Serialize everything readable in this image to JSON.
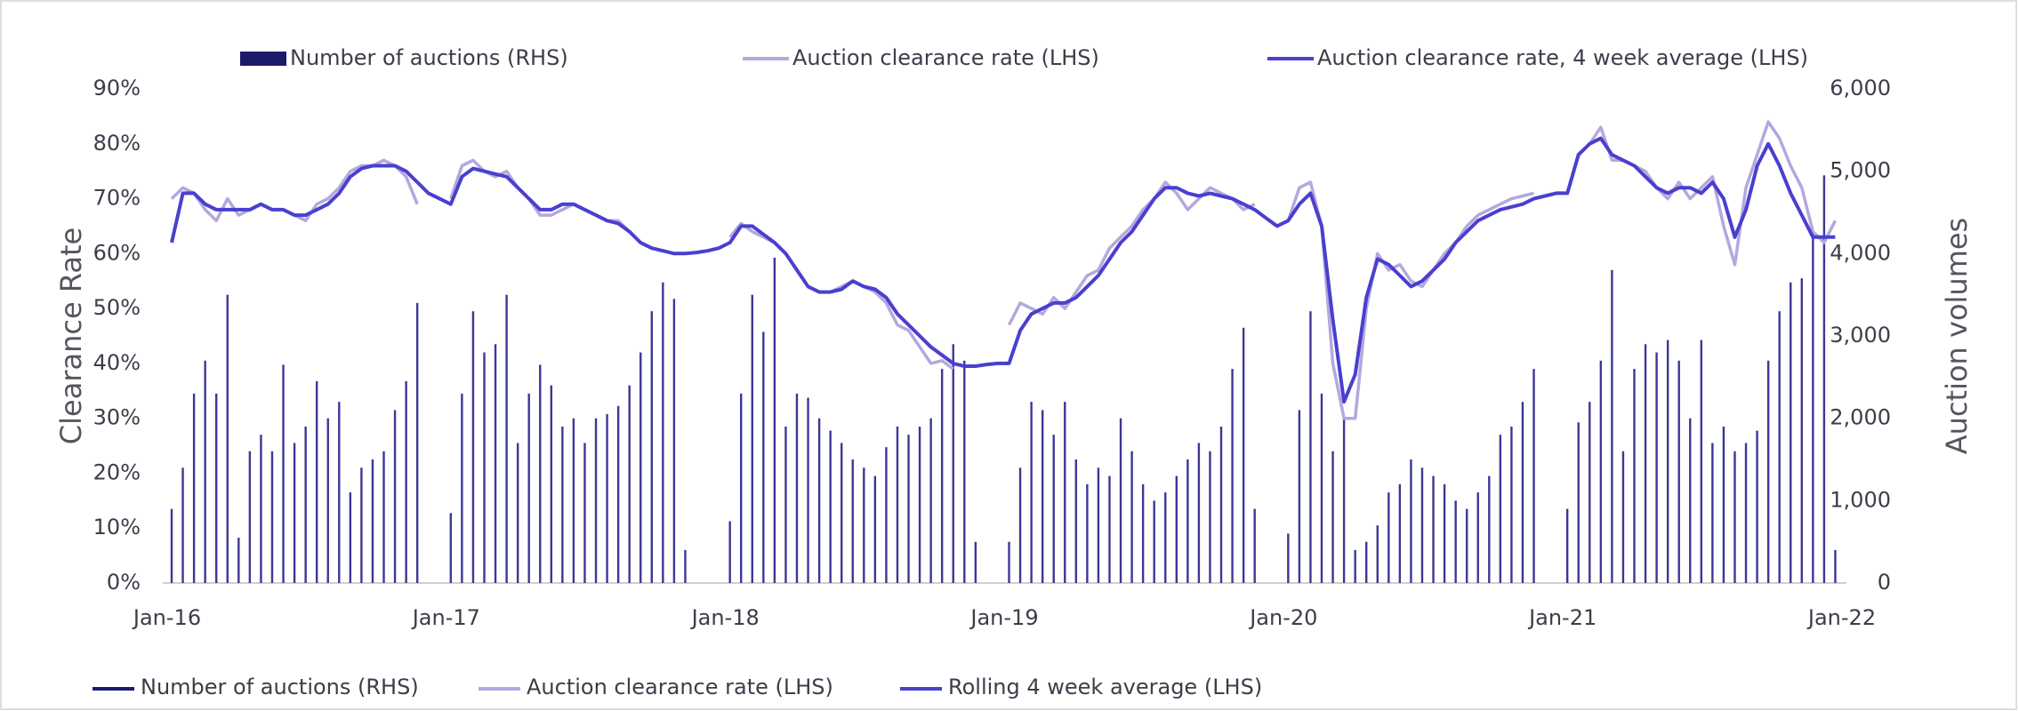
{
  "chart_data": {
    "type": "bar-line",
    "y_label": "Clearance Rate",
    "y2_label": "Auction volumes",
    "x": [
      2016,
      2016.04,
      2016.08,
      2016.12,
      2016.16,
      2016.2,
      2016.24,
      2016.28,
      2016.32,
      2016.36,
      2016.4,
      2016.44,
      2016.48,
      2016.52,
      2016.56,
      2016.6,
      2016.64,
      2016.68,
      2016.72,
      2016.76,
      2016.8,
      2016.84,
      2016.88,
      2016.92,
      2016.96,
      2017,
      2017.04,
      2017.08,
      2017.12,
      2017.16,
      2017.2,
      2017.24,
      2017.28,
      2017.32,
      2017.36,
      2017.4,
      2017.44,
      2017.48,
      2017.52,
      2017.56,
      2017.6,
      2017.64,
      2017.68,
      2017.72,
      2017.76,
      2017.8,
      2017.84,
      2017.88,
      2017.92,
      2017.96,
      2018,
      2018.04,
      2018.08,
      2018.12,
      2018.16,
      2018.2,
      2018.24,
      2018.28,
      2018.32,
      2018.36,
      2018.4,
      2018.44,
      2018.48,
      2018.52,
      2018.56,
      2018.6,
      2018.64,
      2018.68,
      2018.72,
      2018.76,
      2018.8,
      2018.84,
      2018.88,
      2018.92,
      2018.96,
      2019,
      2019.04,
      2019.08,
      2019.12,
      2019.16,
      2019.2,
      2019.24,
      2019.28,
      2019.32,
      2019.36,
      2019.4,
      2019.44,
      2019.48,
      2019.52,
      2019.56,
      2019.6,
      2019.64,
      2019.68,
      2019.72,
      2019.76,
      2019.8,
      2019.84,
      2019.88,
      2019.92,
      2019.96,
      2020,
      2020.04,
      2020.08,
      2020.12,
      2020.16,
      2020.2,
      2020.24,
      2020.28,
      2020.32,
      2020.36,
      2020.4,
      2020.44,
      2020.48,
      2020.52,
      2020.56,
      2020.6,
      2020.64,
      2020.68,
      2020.72,
      2020.76,
      2020.8,
      2020.84,
      2020.88,
      2020.92,
      2020.96,
      2021,
      2021.04,
      2021.08,
      2021.12,
      2021.16,
      2021.2,
      2021.24,
      2021.28,
      2021.32,
      2021.36,
      2021.4,
      2021.44,
      2021.48,
      2021.52,
      2021.56,
      2021.6,
      2021.64,
      2021.68,
      2021.72,
      2021.76,
      2021.8,
      2021.84,
      2021.88,
      2021.92,
      2021.96
    ],
    "series": [
      {
        "name": "Number of auctions (RHS)",
        "kind": "bar",
        "axis": "y2",
        "color": "#3b3896",
        "values": [
          900,
          1400,
          2300,
          2700,
          2300,
          3500,
          550,
          1600,
          1800,
          1600,
          2650,
          1700,
          1900,
          2450,
          2000,
          2200,
          1100,
          1400,
          1500,
          1600,
          2100,
          2450,
          3400,
          null,
          null,
          850,
          2300,
          3300,
          2800,
          2900,
          3500,
          1700,
          2300,
          2650,
          2400,
          1900,
          2000,
          1700,
          2000,
          2050,
          2150,
          2400,
          2800,
          3300,
          3650,
          3450,
          400,
          null,
          null,
          null,
          750,
          2300,
          3500,
          3050,
          3950,
          1900,
          2300,
          2250,
          2000,
          1850,
          1700,
          1500,
          1400,
          1300,
          1650,
          1900,
          1800,
          1900,
          2000,
          2600,
          2900,
          2700,
          500,
          null,
          null,
          500,
          1400,
          2200,
          2100,
          1800,
          2200,
          1500,
          1200,
          1400,
          1300,
          2000,
          1600,
          1200,
          1000,
          1100,
          1300,
          1500,
          1700,
          1600,
          1900,
          2600,
          3100,
          900,
          null,
          null,
          600,
          2100,
          3300,
          2300,
          1600,
          2000,
          400,
          500,
          700,
          1100,
          1200,
          1500,
          1400,
          1300,
          1200,
          1000,
          900,
          1100,
          1300,
          1800,
          1900,
          2200,
          2600,
          null,
          null,
          900,
          1950,
          2200,
          2700,
          3800,
          1600,
          2600,
          2900,
          2800,
          2950,
          2700,
          2000,
          2950,
          1700,
          1900,
          1600,
          1700,
          1850,
          2700,
          3300,
          3650,
          3700,
          4250,
          4950,
          400
        ]
      },
      {
        "name": "Auction clearance rate (LHS)",
        "kind": "line",
        "color": "#b4a8de",
        "values": [
          70,
          72,
          71,
          68,
          66,
          70,
          67,
          68,
          69,
          68,
          68,
          67,
          66,
          69,
          70,
          72,
          75,
          76,
          76,
          77,
          76,
          74,
          69,
          null,
          null,
          70,
          76,
          77,
          75,
          74,
          75,
          72,
          70,
          67,
          67,
          68,
          69,
          68,
          67,
          66,
          66,
          64,
          62,
          61,
          60.5,
          60,
          null,
          null,
          null,
          null,
          63,
          65.5,
          64,
          63,
          62,
          60,
          57,
          54,
          53,
          53,
          54,
          55,
          54,
          53,
          51,
          47,
          46,
          43,
          40,
          40.5,
          39,
          null,
          null,
          null,
          null,
          47,
          51,
          50,
          49,
          52,
          50,
          53,
          56,
          57,
          61,
          63,
          65,
          68,
          70,
          73,
          71,
          68,
          70,
          72,
          71,
          70,
          68,
          69,
          null,
          null,
          66,
          72,
          73,
          65,
          40,
          30,
          30,
          50,
          60,
          57,
          58,
          55,
          54,
          57,
          60,
          62,
          65,
          67,
          68,
          69,
          70,
          70.5,
          71,
          null,
          null,
          71,
          78,
          80,
          83,
          77,
          77,
          76,
          75,
          72,
          70,
          73,
          70,
          72,
          74,
          65,
          58,
          72,
          78,
          84,
          81,
          76,
          72,
          64,
          62,
          66
        ]
      },
      {
        "name": "Auction clearance rate, 4 week average (LHS)",
        "kind": "line",
        "color": "#4a3fcf",
        "values": [
          62,
          71,
          71,
          69,
          68,
          68,
          68,
          68,
          69,
          68,
          68,
          67,
          67,
          68,
          69,
          71,
          74,
          75.5,
          76,
          76,
          76,
          75,
          73,
          71,
          70,
          69,
          74,
          75.5,
          75,
          74.5,
          74,
          72,
          70,
          68,
          68,
          69,
          69,
          68,
          67,
          66,
          65.5,
          64,
          62,
          61,
          60.5,
          60,
          60,
          60.2,
          60.5,
          61,
          62,
          65,
          65,
          63.5,
          62,
          60,
          57,
          54,
          53,
          53,
          53.5,
          55,
          54,
          53.5,
          52,
          49,
          47,
          45,
          43,
          41.5,
          40,
          39.5,
          39.5,
          39.8,
          40,
          40,
          46,
          49,
          50,
          51,
          51,
          52,
          54,
          56,
          59,
          62,
          64,
          67,
          70,
          72,
          72,
          71,
          70.5,
          71,
          70.5,
          70,
          69,
          68,
          66.5,
          65,
          66,
          69,
          71,
          65,
          48,
          33,
          38,
          52,
          59,
          58,
          56,
          54,
          55,
          57,
          59,
          62,
          64,
          66,
          67,
          68,
          68.5,
          69,
          70,
          70.5,
          71,
          71,
          78,
          80,
          81,
          78,
          77,
          76,
          74,
          72,
          71,
          72,
          72,
          71,
          73,
          70,
          63,
          68,
          76,
          80,
          76,
          71,
          67,
          63,
          63,
          63
        ]
      }
    ],
    "legend_bottom": [
      {
        "name": "Number of auctions (RHS)",
        "color": "#1c1a6b"
      },
      {
        "name": "Auction clearance rate (LHS)",
        "color": "#b4a8de"
      },
      {
        "name": "Rolling 4 week average (LHS)",
        "color": "#4a3fcf"
      }
    ],
    "xlim": [
      2016,
      2022
    ],
    "xticks": [
      {
        "value": 2016,
        "label": "Jan-16"
      },
      {
        "value": 2017,
        "label": "Jan-17"
      },
      {
        "value": 2018,
        "label": "Jan-18"
      },
      {
        "value": 2019,
        "label": "Jan-19"
      },
      {
        "value": 2020,
        "label": "Jan-20"
      },
      {
        "value": 2021,
        "label": "Jan-21"
      },
      {
        "value": 2022,
        "label": "Jan-22"
      }
    ],
    "ylim": [
      0,
      90
    ],
    "yticks": [
      {
        "value": 0,
        "label": "0%"
      },
      {
        "value": 10,
        "label": "10%"
      },
      {
        "value": 20,
        "label": "20%"
      },
      {
        "value": 30,
        "label": "30%"
      },
      {
        "value": 40,
        "label": "40%"
      },
      {
        "value": 50,
        "label": "50%"
      },
      {
        "value": 60,
        "label": "60%"
      },
      {
        "value": 70,
        "label": "70%"
      },
      {
        "value": 80,
        "label": "80%"
      },
      {
        "value": 90,
        "label": "90%"
      }
    ],
    "y2lim": [
      0,
      6000
    ],
    "y2ticks": [
      0,
      {
        "value": 1000,
        "label": "1,000"
      },
      {
        "value": 2000,
        "label": "2,000"
      },
      {
        "value": 3000,
        "label": "3,000"
      },
      {
        "value": 4000,
        "label": "4,000"
      },
      {
        "value": 5000,
        "label": "5,000"
      },
      {
        "value": 6000,
        "label": "6,000"
      }
    ],
    "grid": false
  }
}
